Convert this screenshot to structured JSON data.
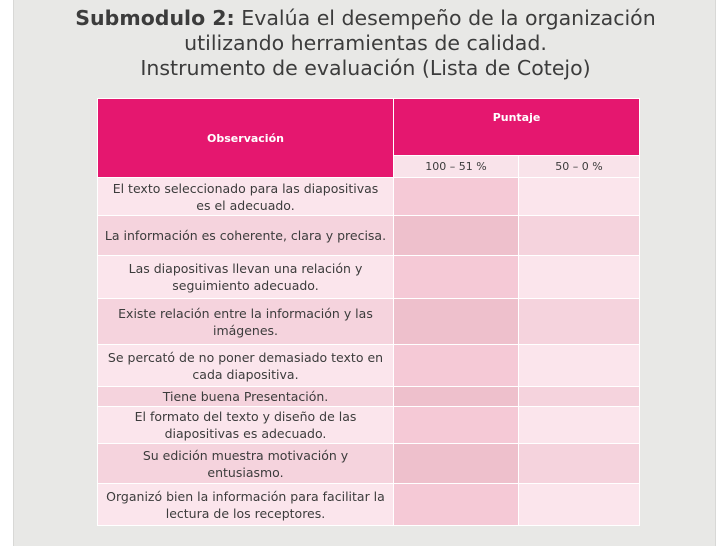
{
  "title": {
    "line1_bold": "Submodulo 2:",
    "line1_rest": " Evalúa el desempeño de la organización",
    "line2": "utilizando herramientas de calidad.",
    "line3": "Instrumento de evaluación (Lista de Cotejo)"
  },
  "table": {
    "header_observacion": "Observación",
    "header_puntaje": "Puntaje",
    "sub_col1": "100 – 51 %",
    "sub_col2": "50 – 0 %",
    "rows": [
      {
        "observacion": "El texto seleccionado para las diapositivas es el adecuado."
      },
      {
        "observacion": "La información es coherente, clara y precisa."
      },
      {
        "observacion": "Las diapositivas llevan una relación y seguimiento adecuado."
      },
      {
        "observacion": "Existe relación entre la información y las imágenes."
      },
      {
        "observacion": "Se percató de no poner demasiado texto en cada diapositiva."
      },
      {
        "observacion": "Tiene buena Presentación."
      },
      {
        "observacion": "El formato del texto y diseño de las diapositivas es adecuado."
      },
      {
        "observacion": "Su edición muestra motivación y entusiasmo."
      },
      {
        "observacion": "Organizó bien la información para facilitar la lectura de los receptores."
      }
    ]
  },
  "colors": {
    "accent": "#e5176f",
    "row_light": "#fbe5ec",
    "row_dark": "#f5d3dd",
    "background": "#e8e8e6"
  }
}
